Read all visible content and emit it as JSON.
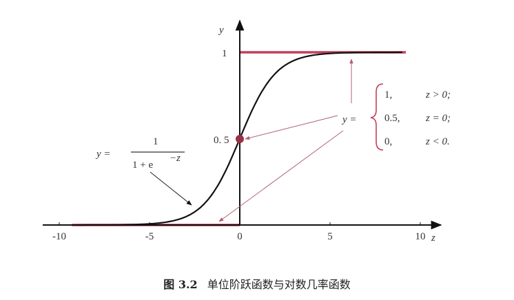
{
  "chart_data": {
    "type": "line",
    "xlabel": "z",
    "ylabel": "y",
    "xlim": [
      -10,
      10
    ],
    "ylim": [
      0,
      1
    ],
    "x_ticks": [
      "-10",
      "-5",
      "0",
      "5",
      "10"
    ],
    "y_ticks": [
      "1",
      "0. 5"
    ],
    "grid": false,
    "series": [
      {
        "kind": "sigmoid",
        "formula_lhs": "y =",
        "numerator": "1",
        "denominator": "1 + e",
        "exponent": "−z",
        "x_range": [
          -9,
          9
        ],
        "color": "#111111"
      },
      {
        "kind": "unit-step",
        "points": [
          [
            -9.3,
            0
          ],
          [
            0,
            0
          ],
          [
            0,
            0.5
          ],
          [
            0,
            1
          ],
          [
            9.2,
            1
          ]
        ],
        "color": "#c0405a"
      }
    ],
    "step_annotation": {
      "lhs": "y =",
      "cases": [
        {
          "value": "1,",
          "condition": "z > 0;"
        },
        {
          "value": "0.5,",
          "condition": "z = 0;"
        },
        {
          "value": "0,",
          "condition": "z < 0."
        }
      ]
    }
  },
  "caption": {
    "label": "图 3.2",
    "text": "单位阶跃函数与对数几率函数"
  },
  "colors": {
    "step": "#c0405a",
    "arrow": "#b06070",
    "axis": "#111111"
  }
}
